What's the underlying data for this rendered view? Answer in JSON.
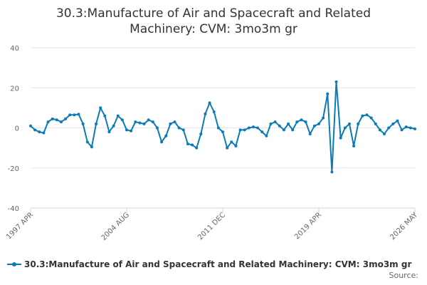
{
  "chart_data": {
    "type": "line",
    "title": "30.3:Manufacture of Air and Spacecraft and Related Machinery: CVM: 3mo3m gr",
    "source": "Source:",
    "x": [
      "1997 APR",
      "1997 AUG",
      "1997 DEC",
      "1998 APR",
      "1998 AUG",
      "1998 DEC",
      "1999 APR",
      "1999 AUG",
      "1999 DEC",
      "2000 APR",
      "2000 AUG",
      "2000 DEC",
      "2001 APR",
      "2001 AUG",
      "2001 DEC",
      "2002 APR",
      "2002 AUG",
      "2002 DEC",
      "2003 APR",
      "2003 AUG",
      "2003 DEC",
      "2004 APR",
      "2004 AUG",
      "2004 DEC",
      "2005 APR",
      "2005 AUG",
      "2005 DEC",
      "2006 APR",
      "2006 AUG",
      "2006 DEC",
      "2007 APR",
      "2007 AUG",
      "2007 DEC",
      "2008 APR",
      "2008 AUG",
      "2008 DEC",
      "2009 APR",
      "2009 AUG",
      "2009 DEC",
      "2010 APR",
      "2010 AUG",
      "2010 DEC",
      "2011 APR",
      "2011 AUG",
      "2011 DEC",
      "2012 APR",
      "2012 AUG",
      "2012 DEC",
      "2013 APR",
      "2013 AUG",
      "2013 DEC",
      "2014 APR",
      "2014 AUG",
      "2014 DEC",
      "2015 APR",
      "2015 AUG",
      "2015 DEC",
      "2016 APR",
      "2016 AUG",
      "2016 DEC",
      "2017 APR",
      "2017 AUG",
      "2017 DEC",
      "2018 APR",
      "2018 AUG",
      "2018 DEC",
      "2019 APR",
      "2019 AUG",
      "2019 DEC",
      "2020 APR",
      "2020 AUG",
      "2020 DEC",
      "2021 APR",
      "2021 AUG",
      "2021 DEC",
      "2022 APR",
      "2022 AUG",
      "2022 DEC",
      "2023 APR",
      "2023 AUG",
      "2023 DEC",
      "2024 APR",
      "2024 AUG",
      "2024 DEC",
      "2025 APR",
      "2025 AUG",
      "2025 DEC",
      "2026 APR",
      "2026 MAY"
    ],
    "series": [
      {
        "name": "30.3:Manufacture of Air and Spacecraft and Related Machinery: CVM: 3mo3m gr",
        "color": "#0a7bb6",
        "values": [
          1,
          -1,
          -2,
          -2.5,
          3,
          4.5,
          4,
          3,
          4.5,
          6.5,
          6.5,
          6.8,
          2,
          -7,
          -9.5,
          2,
          10,
          6,
          -2,
          1,
          6,
          4,
          -1,
          -1.5,
          3,
          2.5,
          2,
          4,
          3,
          0,
          -7,
          -4,
          2,
          3,
          0,
          -1,
          -8,
          -8.5,
          -10,
          -3,
          7,
          12.5,
          8,
          0,
          -2,
          -10,
          -7,
          -9,
          -1,
          -1,
          0,
          0.5,
          0,
          -2,
          -4,
          2,
          3,
          1,
          -1,
          2,
          -1,
          3,
          4,
          3,
          -3,
          1,
          2,
          5,
          17,
          -22,
          23,
          -5,
          0,
          2,
          -9,
          2,
          6,
          6.5,
          5,
          2,
          -1,
          -3,
          0,
          2,
          3.5,
          -1,
          0.5,
          0,
          -0.5
        ]
      }
    ],
    "xticks": [
      "1997 APR",
      "2004 AUG",
      "2011 DEC",
      "2019 APR",
      "2026 MAY"
    ],
    "ylim": [
      -40,
      40
    ],
    "yticks": [
      -40,
      -20,
      0,
      20,
      40
    ],
    "grid": true
  }
}
